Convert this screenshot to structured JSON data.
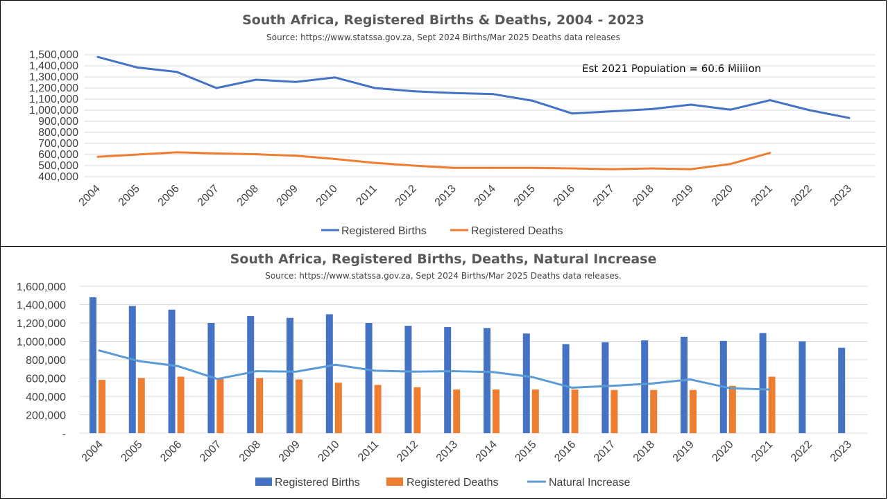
{
  "charts": [
    {
      "type": "line",
      "title": "South Africa, Registered Births & Deaths, 2004 - 2023",
      "subtitle": "Source: https://www.statssa.gov.za, Sept 2024 Births/Mar 2025 Deaths data releases",
      "annotation": "Est 2021 Population = 60.6 Million",
      "categories": [
        "2004",
        "2005",
        "2006",
        "2007",
        "2008",
        "2009",
        "2010",
        "2011",
        "2012",
        "2013",
        "2014",
        "2015",
        "2016",
        "2017",
        "2018",
        "2019",
        "2020",
        "2021",
        "2022",
        "2023"
      ],
      "ylim": [
        400000,
        1500000
      ],
      "yticks": [
        400000,
        500000,
        600000,
        700000,
        800000,
        900000,
        1000000,
        1100000,
        1200000,
        1300000,
        1400000,
        1500000
      ],
      "ytick_labels": [
        "400,000",
        "500,000",
        "600,000",
        "700,000",
        "800,000",
        "900,000",
        "1,000,000",
        "1,100,000",
        "1,200,000",
        "1,300,000",
        "1,400,000",
        "1,500,000"
      ],
      "grid": true,
      "legend_position": "bottom",
      "series": [
        {
          "name": "Registered Births",
          "color": "#4472c4",
          "values": [
            1480000,
            1385000,
            1345000,
            1200000,
            1275000,
            1255000,
            1295000,
            1200000,
            1170000,
            1155000,
            1145000,
            1085000,
            970000,
            990000,
            1010000,
            1050000,
            1005000,
            1090000,
            1000000,
            930000
          ]
        },
        {
          "name": "Registered Deaths",
          "color": "#ed7d31",
          "values": [
            580000,
            600000,
            620000,
            610000,
            602000,
            590000,
            560000,
            525000,
            500000,
            480000,
            480000,
            480000,
            475000,
            468000,
            475000,
            468000,
            515000,
            615000,
            null,
            null
          ]
        }
      ]
    },
    {
      "type": "bar",
      "title": "South Africa, Registered Births, Deaths, Natural Increase",
      "subtitle": "Source: https://www.statssa.gov.za, Sept 2024 Births/Mar 2025 Deaths data releases.",
      "categories": [
        "2004",
        "2005",
        "2006",
        "2007",
        "2008",
        "2009",
        "2010",
        "2011",
        "2012",
        "2013",
        "2014",
        "2015",
        "2016",
        "2017",
        "2018",
        "2019",
        "2020",
        "2021",
        "2022",
        "2023"
      ],
      "ylim": [
        0,
        1600000
      ],
      "yticks": [
        0,
        200000,
        400000,
        600000,
        800000,
        1000000,
        1200000,
        1400000,
        1600000
      ],
      "ytick_labels": [
        "-",
        "200,000",
        "400,000",
        "600,000",
        "800,000",
        "1,000,000",
        "1,200,000",
        "1,400,000",
        "1,600,000"
      ],
      "grid": true,
      "legend_position": "bottom",
      "series": [
        {
          "name": "Registered Births",
          "kind": "bar",
          "color": "#4472c4",
          "values": [
            1480000,
            1385000,
            1345000,
            1200000,
            1275000,
            1255000,
            1295000,
            1200000,
            1170000,
            1155000,
            1145000,
            1085000,
            970000,
            990000,
            1010000,
            1050000,
            1005000,
            1090000,
            1000000,
            930000
          ]
        },
        {
          "name": "Registered Deaths",
          "kind": "bar",
          "color": "#ed7d31",
          "values": [
            580000,
            600000,
            615000,
            600000,
            600000,
            585000,
            550000,
            525000,
            500000,
            475000,
            475000,
            475000,
            475000,
            470000,
            470000,
            470000,
            515000,
            615000,
            null,
            null
          ]
        },
        {
          "name": "Natural Increase",
          "kind": "line",
          "color": "#5b9bd5",
          "values": [
            900000,
            785000,
            730000,
            590000,
            675000,
            670000,
            745000,
            680000,
            670000,
            675000,
            665000,
            610000,
            495000,
            515000,
            540000,
            585000,
            490000,
            475000,
            null,
            null
          ]
        }
      ]
    }
  ]
}
